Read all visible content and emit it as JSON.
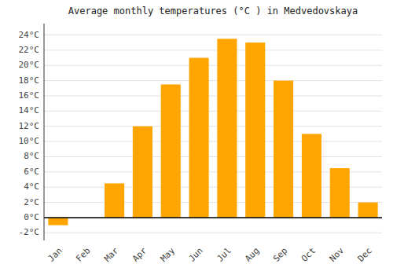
{
  "chart_data": {
    "type": "bar",
    "title": "Average monthly temperatures (°C ) in Medvedovskaya",
    "categories": [
      "Jan",
      "Feb",
      "Mar",
      "Apr",
      "May",
      "Jun",
      "Jul",
      "Aug",
      "Sep",
      "Oct",
      "Nov",
      "Dec"
    ],
    "values": [
      -1.0,
      0.0,
      4.5,
      12.0,
      17.5,
      21.0,
      23.5,
      23.0,
      18.0,
      11.0,
      6.5,
      2.0
    ],
    "color": "#FFA500",
    "ylim": [
      -3,
      25.5
    ],
    "yticks": [
      {
        "value": -2,
        "label": "-2°C"
      },
      {
        "value": 0,
        "label": "0°C"
      },
      {
        "value": 2,
        "label": "2°C"
      },
      {
        "value": 4,
        "label": "4°C"
      },
      {
        "value": 6,
        "label": "6°C"
      },
      {
        "value": 8,
        "label": "8°C"
      },
      {
        "value": 10,
        "label": "10°C"
      },
      {
        "value": 12,
        "label": "12°C"
      },
      {
        "value": 14,
        "label": "14°C"
      },
      {
        "value": 16,
        "label": "16°C"
      },
      {
        "value": 18,
        "label": "18°C"
      },
      {
        "value": 20,
        "label": "20°C"
      },
      {
        "value": 22,
        "label": "22°C"
      },
      {
        "value": 24,
        "label": "24°C"
      }
    ],
    "grid": true
  }
}
